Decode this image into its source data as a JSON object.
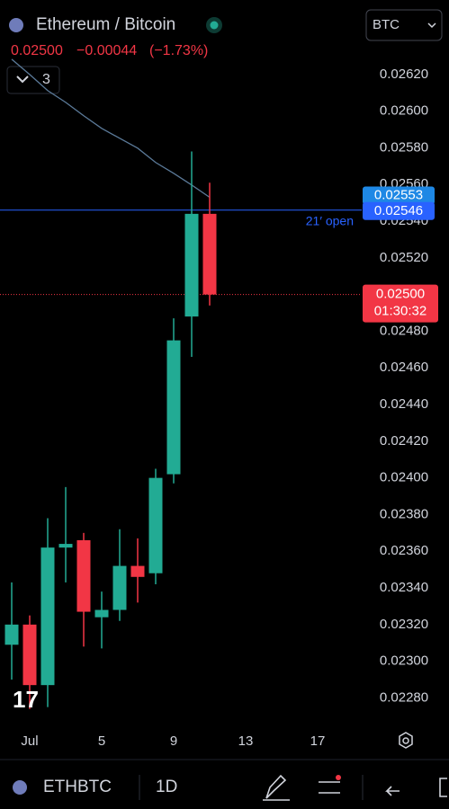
{
  "header": {
    "symbol_title": "Ethereum / Bitcoin",
    "last_price": "0.02500",
    "change": "−0.00044",
    "change_pct": "(−1.73%)",
    "indicator_count": "3",
    "currency": "BTC"
  },
  "toolbar": {
    "ticker": "ETHBTC",
    "interval": "1D"
  },
  "chart_data": {
    "type": "candlestick",
    "x": [
      0,
      1,
      2,
      3,
      4,
      5,
      6,
      7,
      8,
      9,
      10,
      11
    ],
    "xlim": [
      -0.65,
      19.35
    ],
    "xticks": [
      {
        "value": 1,
        "label": "Jul"
      },
      5,
      9,
      13,
      17
    ],
    "open": [
      0.02309,
      0.0232,
      0.02287,
      0.02362,
      0.02366,
      0.02324,
      0.02328,
      0.02352,
      0.02348,
      0.02402,
      0.02488,
      0.02544
    ],
    "high": [
      0.02343,
      0.02325,
      0.02378,
      0.02395,
      0.0237,
      0.02338,
      0.02372,
      0.02367,
      0.02405,
      0.02487,
      0.02578,
      0.02561
    ],
    "low": [
      0.0229,
      0.02274,
      0.02275,
      0.02343,
      0.02308,
      0.02307,
      0.02322,
      0.02332,
      0.02342,
      0.02397,
      0.02466,
      0.02494
    ],
    "close": [
      0.0232,
      0.02287,
      0.02362,
      0.02364,
      0.02327,
      0.02328,
      0.02352,
      0.02346,
      0.024,
      0.02475,
      0.02544,
      0.025
    ],
    "up_color": "#22ab94",
    "down_color": "#f23645",
    "ma": {
      "color": "#5b7a99",
      "values": [
        0.026283,
        0.0262,
        0.026112,
        0.026048,
        0.025975,
        0.025906,
        0.025852,
        0.025798,
        0.02572,
        0.025661,
        0.025597,
        0.02553
      ]
    },
    "ylim": [
      0.02266,
      0.02641
    ],
    "yticks": [
      {
        "value": 0.0228,
        "label": "0.02280"
      },
      {
        "value": 0.023,
        "label": "0.02300"
      },
      {
        "value": 0.0232,
        "label": "0.02320"
      },
      {
        "value": 0.0234,
        "label": "0.02340"
      },
      {
        "value": 0.0236,
        "label": "0.02360"
      },
      {
        "value": 0.0238,
        "label": "0.02380"
      },
      {
        "value": 0.024,
        "label": "0.02400"
      },
      {
        "value": 0.0242,
        "label": "0.02420"
      },
      {
        "value": 0.0244,
        "label": "0.02440"
      },
      {
        "value": 0.0246,
        "label": "0.02460"
      },
      {
        "value": 0.0248,
        "label": "0.02480"
      },
      {
        "value": 0.025,
        "label": "0.02500"
      },
      {
        "value": 0.0252,
        "label": "0.02520"
      },
      {
        "value": 0.0254,
        "label": "0.02540"
      },
      {
        "value": 0.0256,
        "label": "0.02560"
      },
      {
        "value": 0.0258,
        "label": "0.02580"
      },
      {
        "value": 0.026,
        "label": "0.02600"
      },
      {
        "value": 0.0262,
        "label": "0.02620"
      }
    ],
    "ma_badge": {
      "value": 0.02553,
      "label": "0.02553",
      "color": "#1e88e5"
    },
    "open_line": {
      "value": 0.02546,
      "label": "0.02546",
      "text": "21′ open",
      "color": "#2962ff"
    },
    "price_line": {
      "value": 0.025,
      "label": "0.02500",
      "countdown": "01:30:32",
      "color": "#f23645"
    }
  }
}
